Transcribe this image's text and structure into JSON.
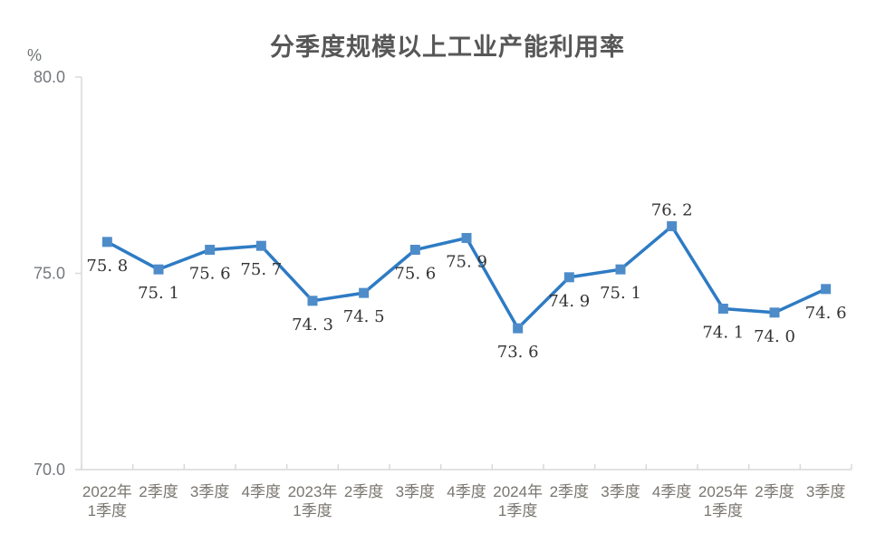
{
  "chart_data": {
    "type": "line",
    "title": "分季度规模以上工业产能利用率",
    "ylabel": "%",
    "xlabel": "",
    "categories": [
      [
        "2022年",
        "1季度"
      ],
      [
        "2季度"
      ],
      [
        "3季度"
      ],
      [
        "4季度"
      ],
      [
        "2023年",
        "1季度"
      ],
      [
        "2季度"
      ],
      [
        "3季度"
      ],
      [
        "4季度"
      ],
      [
        "2024年",
        "1季度"
      ],
      [
        "2季度"
      ],
      [
        "3季度"
      ],
      [
        "4季度"
      ],
      [
        "2025年",
        "1季度"
      ],
      [
        "2季度"
      ],
      [
        "3季度"
      ]
    ],
    "values": [
      75.8,
      75.1,
      75.6,
      75.7,
      74.3,
      74.5,
      75.6,
      75.9,
      73.6,
      74.9,
      75.1,
      76.2,
      74.1,
      74.0,
      74.6
    ],
    "data_label_positions": [
      "below",
      "below",
      "below",
      "below",
      "below",
      "below",
      "below",
      "below",
      "below",
      "below",
      "below",
      "above",
      "below",
      "below",
      "below"
    ],
    "ylim": [
      70.0,
      80.0
    ],
    "yticks": [
      {
        "value": 80.0,
        "label": "80.0"
      },
      {
        "value": 75.0,
        "label": "75.0"
      },
      {
        "value": 70.0,
        "label": "70.0"
      }
    ],
    "grid": false,
    "legend": false,
    "colors": {
      "line": "#2E7BC4",
      "marker": "#4E8CC9",
      "axis": "#D9D9D9",
      "axis_text": "#75787C",
      "title_text": "#575757",
      "data_label_text": "#333333"
    }
  }
}
